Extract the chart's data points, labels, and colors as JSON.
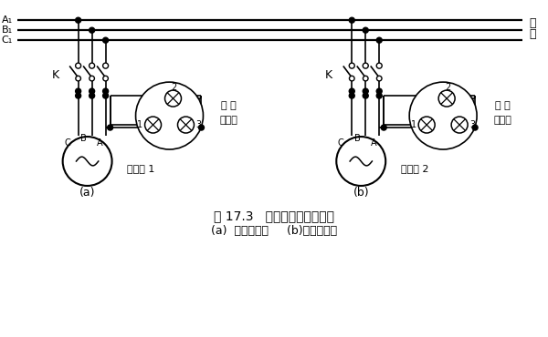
{
  "bg_color": "#ffffff",
  "line_color": "#000000",
  "title_text": "图 17.3   三相同步发电机整步",
  "subtitle_text": "(a)  灯光明暗法     (b)灯光旋转法",
  "sync_label": "同 步\n指示灯",
  "gen1_label": "发电机 1",
  "gen2_label": "发电机 2",
  "bus_right_1": "电",
  "bus_right_2": "网",
  "K_label": "K",
  "sub_a": "(a)",
  "sub_b": "(b)",
  "busA": "A₁",
  "busB": "B₁",
  "busC": "C₁"
}
